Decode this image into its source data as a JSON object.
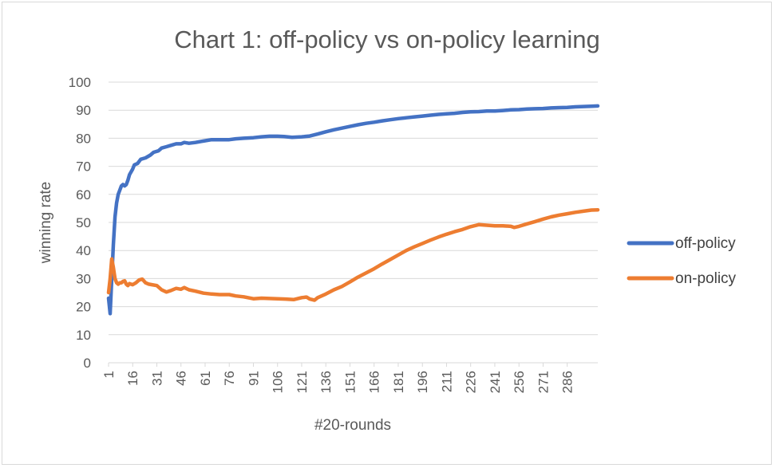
{
  "chart_data": {
    "type": "line",
    "title": "Chart 1: off-policy vs on-policy learning",
    "xlabel": "#20-rounds",
    "ylabel": "winning rate",
    "ylim": [
      0,
      100
    ],
    "yticks": [
      0,
      10,
      20,
      30,
      40,
      50,
      60,
      70,
      80,
      90,
      100
    ],
    "xlim": [
      1,
      305
    ],
    "xticks": [
      1,
      16,
      31,
      46,
      61,
      76,
      91,
      106,
      121,
      136,
      151,
      166,
      181,
      196,
      211,
      226,
      241,
      256,
      271,
      286
    ],
    "grid": "horizontal",
    "legend_position": "right",
    "series": [
      {
        "name": "off-policy",
        "color": "#4472c4",
        "points": [
          [
            1,
            23
          ],
          [
            2,
            17.5
          ],
          [
            3,
            30
          ],
          [
            4,
            42
          ],
          [
            5,
            52
          ],
          [
            6,
            57
          ],
          [
            7,
            60
          ],
          [
            8,
            61.5
          ],
          [
            9,
            63
          ],
          [
            10,
            63.5
          ],
          [
            11,
            63
          ],
          [
            12,
            63.5
          ],
          [
            13,
            65
          ],
          [
            14,
            67
          ],
          [
            16,
            69
          ],
          [
            17,
            70.5
          ],
          [
            19,
            71
          ],
          [
            21,
            72.5
          ],
          [
            24,
            73
          ],
          [
            27,
            74
          ],
          [
            29,
            75
          ],
          [
            32,
            75.5
          ],
          [
            34,
            76.5
          ],
          [
            37,
            77
          ],
          [
            40,
            77.5
          ],
          [
            43,
            78
          ],
          [
            46,
            78
          ],
          [
            48,
            78.5
          ],
          [
            51,
            78.2
          ],
          [
            55,
            78.5
          ],
          [
            60,
            79
          ],
          [
            65,
            79.5
          ],
          [
            70,
            79.5
          ],
          [
            76,
            79.5
          ],
          [
            80,
            79.8
          ],
          [
            85,
            80
          ],
          [
            91,
            80.2
          ],
          [
            96,
            80.5
          ],
          [
            101,
            80.7
          ],
          [
            106,
            80.7
          ],
          [
            110,
            80.6
          ],
          [
            115,
            80.3
          ],
          [
            121,
            80.5
          ],
          [
            126,
            80.8
          ],
          [
            131,
            81.5
          ],
          [
            136,
            82.3
          ],
          [
            141,
            83
          ],
          [
            146,
            83.6
          ],
          [
            151,
            84.2
          ],
          [
            156,
            84.8
          ],
          [
            161,
            85.3
          ],
          [
            166,
            85.7
          ],
          [
            171,
            86.2
          ],
          [
            176,
            86.6
          ],
          [
            181,
            87
          ],
          [
            186,
            87.3
          ],
          [
            191,
            87.6
          ],
          [
            196,
            87.9
          ],
          [
            201,
            88.2
          ],
          [
            206,
            88.5
          ],
          [
            211,
            88.7
          ],
          [
            216,
            88.9
          ],
          [
            221,
            89.2
          ],
          [
            226,
            89.4
          ],
          [
            231,
            89.5
          ],
          [
            236,
            89.7
          ],
          [
            241,
            89.7
          ],
          [
            246,
            89.9
          ],
          [
            251,
            90.1
          ],
          [
            256,
            90.2
          ],
          [
            261,
            90.4
          ],
          [
            266,
            90.5
          ],
          [
            271,
            90.6
          ],
          [
            276,
            90.8
          ],
          [
            281,
            90.9
          ],
          [
            286,
            91
          ],
          [
            291,
            91.2
          ],
          [
            296,
            91.3
          ],
          [
            301,
            91.4
          ],
          [
            305,
            91.5
          ]
        ]
      },
      {
        "name": "on-policy",
        "color": "#ed7d31",
        "points": [
          [
            1,
            25
          ],
          [
            2,
            30
          ],
          [
            3,
            37
          ],
          [
            4,
            34
          ],
          [
            5,
            30
          ],
          [
            6,
            28.5
          ],
          [
            7,
            28
          ],
          [
            8,
            28.5
          ],
          [
            9,
            28.5
          ],
          [
            10,
            29
          ],
          [
            11,
            29.2
          ],
          [
            12,
            28
          ],
          [
            13,
            27.5
          ],
          [
            14,
            28.2
          ],
          [
            16,
            27.8
          ],
          [
            18,
            28.5
          ],
          [
            20,
            29.5
          ],
          [
            22,
            29.8
          ],
          [
            24,
            28.5
          ],
          [
            26,
            28
          ],
          [
            28,
            27.8
          ],
          [
            31,
            27.5
          ],
          [
            34,
            26
          ],
          [
            37,
            25.2
          ],
          [
            40,
            25.8
          ],
          [
            43,
            26.5
          ],
          [
            46,
            26.2
          ],
          [
            48,
            26.8
          ],
          [
            51,
            26
          ],
          [
            55,
            25.5
          ],
          [
            60,
            24.8
          ],
          [
            65,
            24.5
          ],
          [
            70,
            24.3
          ],
          [
            76,
            24.3
          ],
          [
            80,
            23.8
          ],
          [
            85,
            23.5
          ],
          [
            91,
            22.8
          ],
          [
            96,
            23
          ],
          [
            101,
            22.9
          ],
          [
            106,
            22.8
          ],
          [
            111,
            22.7
          ],
          [
            116,
            22.5
          ],
          [
            121,
            23.2
          ],
          [
            124,
            23.4
          ],
          [
            126,
            22.7
          ],
          [
            129,
            22.3
          ],
          [
            131,
            23.2
          ],
          [
            136,
            24.5
          ],
          [
            141,
            26
          ],
          [
            146,
            27.2
          ],
          [
            151,
            28.8
          ],
          [
            156,
            30.5
          ],
          [
            161,
            32
          ],
          [
            166,
            33.5
          ],
          [
            171,
            35.2
          ],
          [
            176,
            36.8
          ],
          [
            181,
            38.4
          ],
          [
            186,
            40
          ],
          [
            191,
            41.3
          ],
          [
            196,
            42.5
          ],
          [
            201,
            43.7
          ],
          [
            206,
            44.8
          ],
          [
            211,
            45.8
          ],
          [
            216,
            46.7
          ],
          [
            221,
            47.5
          ],
          [
            226,
            48.5
          ],
          [
            231,
            49.2
          ],
          [
            236,
            49
          ],
          [
            241,
            48.8
          ],
          [
            246,
            48.8
          ],
          [
            251,
            48.6
          ],
          [
            253,
            48.2
          ],
          [
            256,
            48.6
          ],
          [
            261,
            49.5
          ],
          [
            266,
            50.3
          ],
          [
            271,
            51.2
          ],
          [
            276,
            52
          ],
          [
            281,
            52.6
          ],
          [
            286,
            53.1
          ],
          [
            291,
            53.6
          ],
          [
            296,
            54
          ],
          [
            301,
            54.4
          ],
          [
            305,
            54.5
          ]
        ]
      }
    ]
  }
}
